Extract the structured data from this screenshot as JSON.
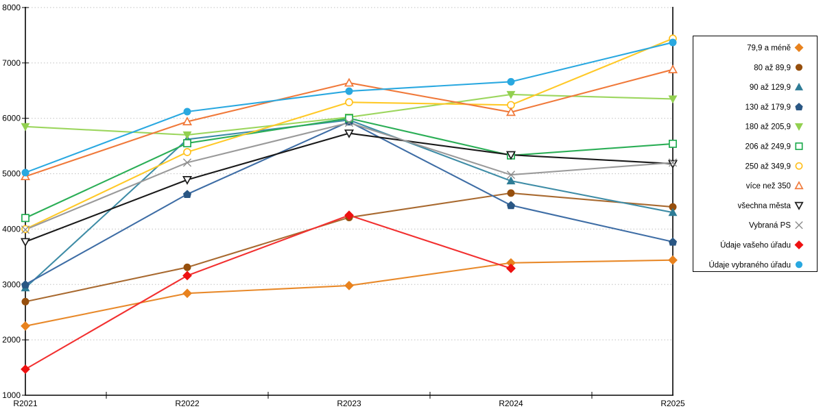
{
  "chart_data": {
    "type": "line",
    "title": "",
    "xlabel": "",
    "ylabel": "",
    "categories": [
      "R2021",
      "R2022",
      "R2023",
      "R2024",
      "R2025"
    ],
    "ylim": [
      1000,
      8000
    ],
    "ytick_interval": 1000,
    "ytick_labels": [
      "1000",
      "2000",
      "3000",
      "4000",
      "5000",
      "6000",
      "7000",
      "8000"
    ],
    "grid": "horizontal dotted gray",
    "legend_position": "right outside, boxed",
    "series": [
      {
        "name": "79,9 a méně",
        "marker": "diamond",
        "style": "filled",
        "marker_color": "#E8821E",
        "line_color": "#E8892A",
        "values": [
          2250,
          2840,
          2980,
          3390,
          3440
        ]
      },
      {
        "name": "80 až 89,9",
        "marker": "circle",
        "style": "filled",
        "marker_color": "#964F0D",
        "line_color": "#A8692F",
        "values": [
          2690,
          3310,
          4210,
          4650,
          4400
        ]
      },
      {
        "name": "90 až 129,9",
        "marker": "triangle-up",
        "style": "filled",
        "marker_color": "#2E7C96",
        "line_color": "#3E8CA6",
        "values": [
          2940,
          5620,
          5970,
          4870,
          4300
        ]
      },
      {
        "name": "130 až 179,9",
        "marker": "pentagon",
        "style": "filled",
        "marker_color": "#2A5784",
        "line_color": "#3E6DA5",
        "values": [
          3000,
          4630,
          5940,
          4430,
          3770
        ]
      },
      {
        "name": "180 až 205,9",
        "marker": "triangle-down",
        "style": "filled",
        "marker_color": "#92D050",
        "line_color": "#9CD65E",
        "values": [
          5850,
          5700,
          6020,
          6430,
          6350
        ]
      },
      {
        "name": "206 až 249,9",
        "marker": "square",
        "style": "open",
        "marker_color": "#1FAB4F",
        "line_color": "#2BAE56",
        "values": [
          4200,
          5550,
          6000,
          5330,
          5540
        ]
      },
      {
        "name": "250 až 349,9",
        "marker": "circle",
        "style": "open",
        "marker_color": "#FFC01E",
        "line_color": "#FFC928",
        "values": [
          4000,
          5390,
          6290,
          6240,
          7440
        ]
      },
      {
        "name": "více než 350",
        "marker": "triangle-up",
        "style": "open",
        "marker_color": "#F0793A",
        "line_color": "#F0793A",
        "values": [
          4950,
          5940,
          6640,
          6110,
          6880
        ]
      },
      {
        "name": "všechna města",
        "marker": "triangle-down",
        "style": "open",
        "marker_color": "#1A1A1A",
        "line_color": "#1A1A1A",
        "values": [
          3770,
          4890,
          5730,
          5340,
          5180
        ]
      },
      {
        "name": "Vybraná PS",
        "marker": "x",
        "style": "open",
        "marker_color": "#8C8C8C",
        "line_color": "#9A9A9A",
        "values": [
          3990,
          5200,
          5920,
          4980,
          5200
        ]
      },
      {
        "name": "Údaje vašeho úřadu",
        "marker": "diamond",
        "style": "filled",
        "marker_color": "#EE1111",
        "line_color": "#F23030",
        "values": [
          1470,
          3160,
          4250,
          3290,
          null
        ]
      },
      {
        "name": "Údaje vybraného úřadu",
        "marker": "circle",
        "style": "filled",
        "marker_color": "#29A8E0",
        "line_color": "#29A8E0",
        "values": [
          5020,
          6120,
          6490,
          6660,
          7370
        ]
      }
    ]
  }
}
